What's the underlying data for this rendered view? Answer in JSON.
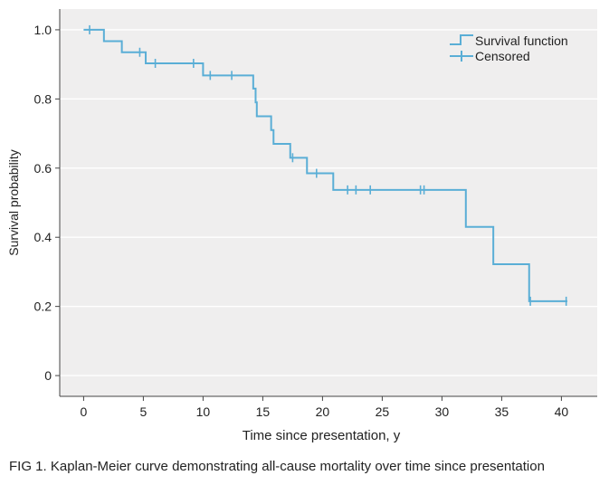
{
  "caption": "FIG 1. Kaplan-Meier curve demonstrating all-cause mortality over time since presentation",
  "chart_data": {
    "type": "line",
    "title": "",
    "xlabel": "Time since presentation, y",
    "ylabel": "Survival probability",
    "xlim": [
      -2,
      43
    ],
    "ylim": [
      -0.06,
      1.06
    ],
    "x_ticks": [
      0,
      5,
      10,
      15,
      20,
      25,
      30,
      35,
      40
    ],
    "y_ticks": [
      0,
      0.2,
      0.4,
      0.6,
      0.8,
      1.0
    ],
    "y_tick_labels": [
      "0",
      "0.2",
      "0.4",
      "0.6",
      "0.8",
      "1.0"
    ],
    "grid": "horizontal",
    "legend_position": "top-right",
    "colors": {
      "series": "#5aaed6",
      "plot_bg": "#efeeee",
      "grid": "#ffffff"
    },
    "series": [
      {
        "name": "Survival function",
        "steps": [
          {
            "x": 0,
            "y": 1.0
          },
          {
            "x": 1.7,
            "y": 0.967
          },
          {
            "x": 3.2,
            "y": 0.935
          },
          {
            "x": 5.2,
            "y": 0.903
          },
          {
            "x": 10.0,
            "y": 0.868
          },
          {
            "x": 14.2,
            "y": 0.83
          },
          {
            "x": 14.4,
            "y": 0.79
          },
          {
            "x": 14.5,
            "y": 0.75
          },
          {
            "x": 15.7,
            "y": 0.71
          },
          {
            "x": 15.9,
            "y": 0.67
          },
          {
            "x": 17.3,
            "y": 0.63
          },
          {
            "x": 18.7,
            "y": 0.585
          },
          {
            "x": 20.9,
            "y": 0.537
          },
          {
            "x": 32.0,
            "y": 0.43
          },
          {
            "x": 34.3,
            "y": 0.322
          },
          {
            "x": 37.3,
            "y": 0.215
          }
        ],
        "end_x": 40.5
      }
    ],
    "censored": {
      "name": "Censored",
      "points": [
        {
          "x": 0.5,
          "y": 1.0
        },
        {
          "x": 4.7,
          "y": 0.935
        },
        {
          "x": 6.0,
          "y": 0.903
        },
        {
          "x": 9.2,
          "y": 0.903
        },
        {
          "x": 10.6,
          "y": 0.868
        },
        {
          "x": 12.4,
          "y": 0.868
        },
        {
          "x": 17.5,
          "y": 0.63
        },
        {
          "x": 19.5,
          "y": 0.585
        },
        {
          "x": 22.1,
          "y": 0.537
        },
        {
          "x": 22.8,
          "y": 0.537
        },
        {
          "x": 24.0,
          "y": 0.537
        },
        {
          "x": 28.2,
          "y": 0.537
        },
        {
          "x": 28.5,
          "y": 0.537
        },
        {
          "x": 37.4,
          "y": 0.215
        },
        {
          "x": 40.4,
          "y": 0.215
        }
      ]
    }
  }
}
